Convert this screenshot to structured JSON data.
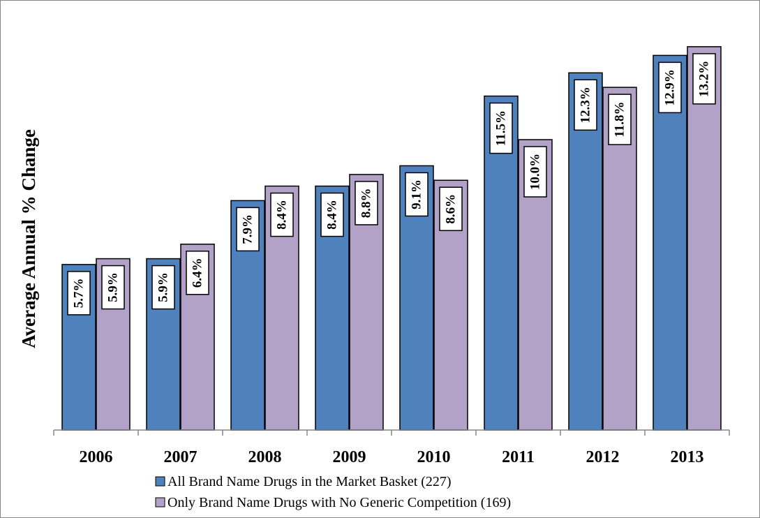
{
  "chart_data": {
    "type": "bar",
    "title": "",
    "xlabel": "",
    "ylabel": "Average Annual % Change",
    "ylim": [
      0,
      14
    ],
    "grid": false,
    "legend_placement": "bottom",
    "categories": [
      "2006",
      "2007",
      "2008",
      "2009",
      "2010",
      "2011",
      "2012",
      "2013"
    ],
    "series": [
      {
        "name": "All Brand Name Drugs in the Market Basket (227)",
        "color": "#4f81bd",
        "values": [
          5.7,
          5.9,
          7.9,
          8.4,
          9.1,
          11.5,
          12.3,
          12.9
        ],
        "labels": [
          "5.7%",
          "5.9%",
          "7.9%",
          "8.4%",
          "9.1%",
          "11.5%",
          "12.3%",
          "12.9%"
        ]
      },
      {
        "name": "Only Brand Name Drugs with No Generic Competition (169)",
        "color": "#b3a2c7",
        "values": [
          5.9,
          6.4,
          8.4,
          8.8,
          8.6,
          10.0,
          11.8,
          13.2
        ],
        "labels": [
          "5.9%",
          "6.4%",
          "8.4%",
          "8.8%",
          "8.6%",
          "10.0%",
          "11.8%",
          "13.2%"
        ]
      }
    ]
  }
}
